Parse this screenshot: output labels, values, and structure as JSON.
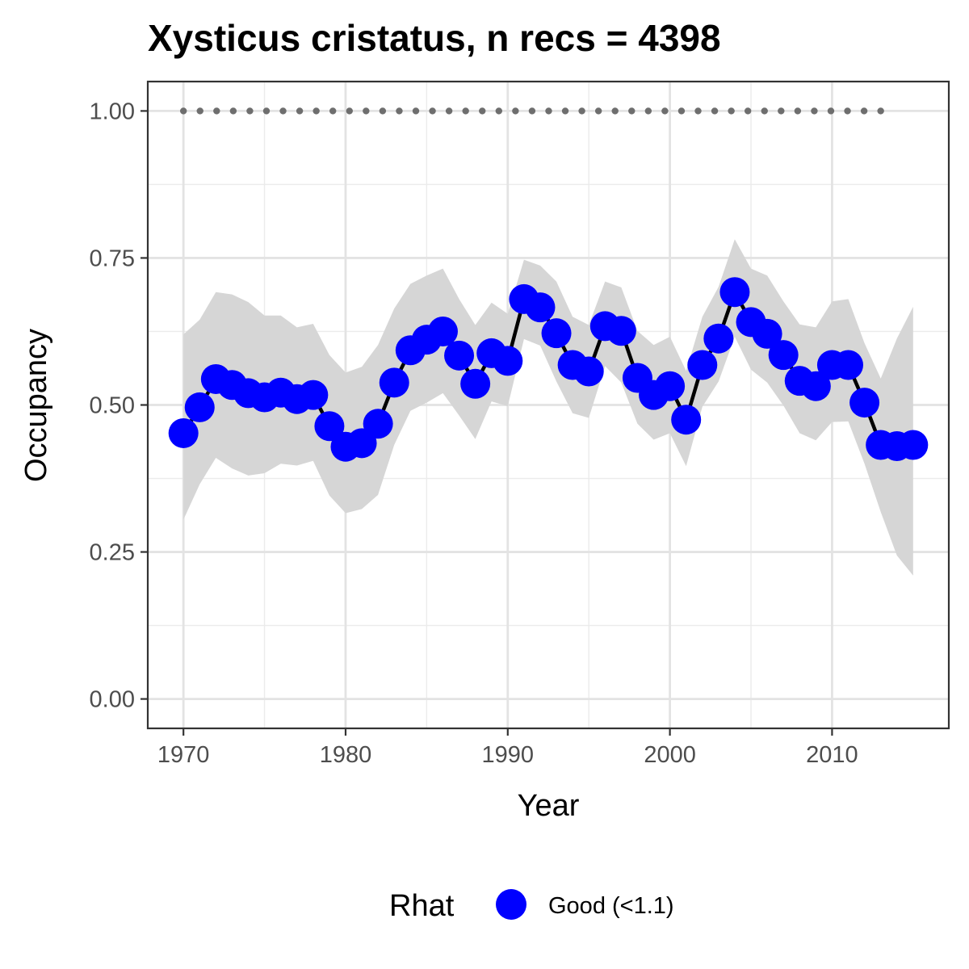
{
  "chart_data": {
    "type": "line",
    "title": "Xysticus cristatus, n recs = 4398",
    "xlabel": "Year",
    "ylabel": "Occupancy",
    "xlim": [
      1967.8,
      2017.2
    ],
    "ylim": [
      -0.05,
      1.05
    ],
    "x_ticks": [
      1970,
      1980,
      1990,
      2000,
      2010
    ],
    "x_tick_labels": [
      "1970",
      "1980",
      "1990",
      "2000",
      "2010"
    ],
    "y_ticks": [
      0,
      0.25,
      0.5,
      0.75,
      1.0
    ],
    "y_tick_labels": [
      "0.00",
      "0.25",
      "0.50",
      "0.75",
      "1.00"
    ],
    "grid": true,
    "legend_position": "bottom",
    "legend": {
      "title": "Rhat",
      "entries": [
        {
          "label": "Good (<1.1)",
          "color": "#0000ff"
        }
      ]
    },
    "colors": {
      "points": "#0000ff",
      "line": "#000000",
      "ribbon": "#d6d6d6",
      "reference_dots": "#6e6e6e"
    },
    "series": [
      {
        "x": [
          1970,
          1971,
          1972,
          1973,
          1974,
          1975,
          1976,
          1977,
          1978,
          1979,
          1980,
          1981,
          1982,
          1983,
          1984,
          1985,
          1986,
          1987,
          1988,
          1989,
          1990,
          1991,
          1992,
          1993,
          1994,
          1995,
          1996,
          1997,
          1998,
          1999,
          2000,
          2001,
          2002,
          2003,
          2004,
          2005,
          2006,
          2007,
          2008,
          2009,
          2010,
          2011,
          2012,
          2013,
          2014,
          2015
        ],
        "y": [
          0.452,
          0.496,
          0.544,
          0.534,
          0.52,
          0.513,
          0.521,
          0.51,
          0.517,
          0.464,
          0.429,
          0.435,
          0.468,
          0.538,
          0.593,
          0.611,
          0.625,
          0.584,
          0.536,
          0.588,
          0.575,
          0.68,
          0.666,
          0.622,
          0.568,
          0.557,
          0.634,
          0.626,
          0.546,
          0.517,
          0.532,
          0.475,
          0.568,
          0.613,
          0.692,
          0.641,
          0.621,
          0.585,
          0.541,
          0.532,
          0.568,
          0.568,
          0.504,
          0.432,
          0.43,
          0.432
        ],
        "lower": [
          0.305,
          0.365,
          0.41,
          0.392,
          0.38,
          0.384,
          0.4,
          0.397,
          0.405,
          0.346,
          0.316,
          0.323,
          0.347,
          0.432,
          0.49,
          0.504,
          0.52,
          0.482,
          0.442,
          0.506,
          0.498,
          0.612,
          0.601,
          0.54,
          0.486,
          0.478,
          0.566,
          0.538,
          0.468,
          0.441,
          0.452,
          0.396,
          0.497,
          0.54,
          0.616,
          0.56,
          0.538,
          0.499,
          0.452,
          0.44,
          0.471,
          0.472,
          0.4,
          0.318,
          0.244,
          0.21
        ],
        "upper": [
          0.62,
          0.645,
          0.692,
          0.688,
          0.675,
          0.652,
          0.652,
          0.632,
          0.638,
          0.585,
          0.555,
          0.565,
          0.602,
          0.664,
          0.706,
          0.72,
          0.732,
          0.68,
          0.636,
          0.674,
          0.655,
          0.747,
          0.737,
          0.71,
          0.65,
          0.636,
          0.71,
          0.7,
          0.626,
          0.602,
          0.616,
          0.558,
          0.65,
          0.701,
          0.782,
          0.732,
          0.72,
          0.676,
          0.637,
          0.632,
          0.676,
          0.68,
          0.605,
          0.545,
          0.613,
          0.667
        ]
      }
    ],
    "reference_line": {
      "y": 1.0,
      "x_start": 1970,
      "x_end": 2013
    }
  }
}
